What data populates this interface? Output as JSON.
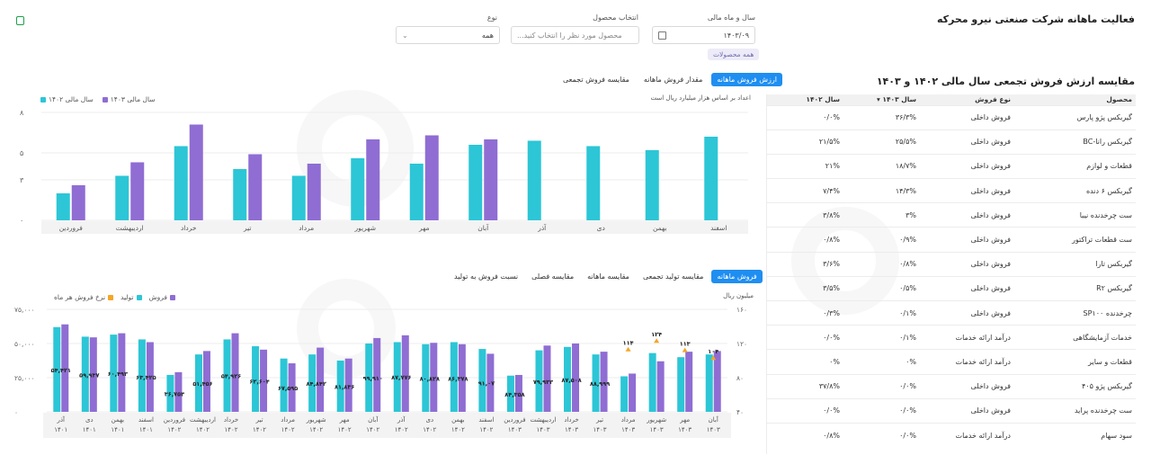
{
  "page": {
    "title": "فعالیت ماهانه شرکت صنعتی نیرو محرکه"
  },
  "filters": {
    "period_label": "سال و ماه مالی",
    "period_value": "۱۴۰۳/۰۹",
    "product_label": "انتخاب محصول",
    "product_placeholder": "محصول مورد نظر را انتخاب کنید...",
    "type_label": "نوع",
    "type_value": "همه",
    "chip": "همه محصولات"
  },
  "table_section": {
    "title": "مقایسه ارزش فروش تجمعی سال مالی ۱۴۰۲ و ۱۴۰۳",
    "headers": [
      "محصول",
      "نوع فروش",
      "سال ۱۴۰۳",
      "سال ۱۴۰۲"
    ],
    "rows": [
      {
        "product": "گیربکس پژو پارس",
        "type": "فروش داخلی",
        "y1403": "۳۶/۳%",
        "y1402": "۰/۰%"
      },
      {
        "product": "گیربکس رانا-BC",
        "type": "فروش داخلی",
        "y1403": "۲۵/۵%",
        "y1402": "۲۱/۵%"
      },
      {
        "product": "قطعات و لوازم",
        "type": "فروش داخلی",
        "y1403": "۱۸/۷%",
        "y1402": "۲۱%"
      },
      {
        "product": "گیربکس ۶ دنده",
        "type": "فروش داخلی",
        "y1403": "۱۴/۳%",
        "y1402": "۷/۴%"
      },
      {
        "product": "ست چرخدنده نیبا",
        "type": "فروش داخلی",
        "y1403": "۳%",
        "y1402": "۳/۸%"
      },
      {
        "product": "ست قطعات تراکتور",
        "type": "فروش داخلی",
        "y1403": "۰/۹%",
        "y1402": "۰/۸%"
      },
      {
        "product": "گیربکس تارا",
        "type": "فروش داخلی",
        "y1403": "۰/۸%",
        "y1402": "۳/۶%"
      },
      {
        "product": "گیربکس R۲",
        "type": "فروش داخلی",
        "y1403": "۰/۵%",
        "y1402": "۳/۵%"
      },
      {
        "product": "چرخدنده SP۱۰۰",
        "type": "فروش داخلی",
        "y1403": "۰/۱%",
        "y1402": "۰/۳%"
      },
      {
        "product": "خدمات آزمایشگاهی",
        "type": "درآمد ارائه خدمات",
        "y1403": "۰/۱%",
        "y1402": "۰/۰%"
      },
      {
        "product": "قطعات و سایر",
        "type": "درآمد ارائه خدمات",
        "y1403": "۰%",
        "y1402": "۰%"
      },
      {
        "product": "گیربکس پژو ۴۰۵",
        "type": "فروش داخلی",
        "y1403": "۰/۰%",
        "y1402": "۳۷/۸%"
      },
      {
        "product": "ست چرخدنده پراید",
        "type": "فروش داخلی",
        "y1403": "۰/۰%",
        "y1402": "۰/۰%"
      },
      {
        "product": "سود سهام",
        "type": "درآمد ارائه خدمات",
        "y1403": "۰/۰%",
        "y1402": "۰/۸%"
      }
    ]
  },
  "top_chart": {
    "tabs": [
      "ارزش فروش ماهانه",
      "مقدار فروش ماهانه",
      "مقایسه فروش تجمعی"
    ],
    "active_tab": 0,
    "note": "اعداد بر اساس هزار میلیارد ریال است",
    "legend": [
      "سال مالی ۱۴۰۳",
      "سال مالی ۱۴۰۲"
    ],
    "yticks": [
      "۸",
      "۵",
      "۳",
      "۰"
    ]
  },
  "bottom_chart": {
    "tabs": [
      "فروش ماهانه",
      "مقایسه تولید تجمعی",
      "مقایسه ماهانه",
      "مقایسه فصلی",
      "نسبت فروش به تولید"
    ],
    "active_tab": 0,
    "unit": "میلیون ریال",
    "legend": [
      "فروش",
      "تولید",
      "نرخ فروش هر ماه"
    ],
    "yticks_left": [
      "۷۵,۰۰۰",
      "۵۰,۰۰۰",
      "۲۵,۰۰۰",
      "۰"
    ],
    "yticks_right": [
      "۱۶۰",
      "۱۲۰",
      "۸۰",
      "۴۰"
    ]
  },
  "colors": {
    "cyan": "#2cc6d6",
    "purple": "#8f6dd3",
    "orange": "#f5a623",
    "accent": "#1f8ef1"
  },
  "chart_data": [
    {
      "type": "bar",
      "title": "",
      "categories": [
        "اسفند",
        "بهمن",
        "دی",
        "آذر",
        "آبان",
        "مهر",
        "شهریور",
        "مرداد",
        "تیر",
        "خرداد",
        "اردیبهشت",
        "فروردین"
      ],
      "ylim": [
        0,
        8
      ],
      "series": [
        {
          "name": "سال مالی ۱۴۰۲",
          "values": [
            6.2,
            5.2,
            5.5,
            5.9,
            5.6,
            4.2,
            4.6,
            3.3,
            3.8,
            5.5,
            3.3,
            2.0
          ]
        },
        {
          "name": "سال مالی ۱۴۰۳",
          "values": [
            null,
            null,
            null,
            null,
            6.0,
            6.3,
            6.0,
            4.2,
            4.9,
            7.1,
            4.3,
            2.6
          ]
        }
      ]
    },
    {
      "type": "bar",
      "title": "",
      "categories": [
        "آذر ۱۴۰۱",
        "دی ۱۴۰۱",
        "بهمن ۱۴۰۱",
        "اسفند ۱۴۰۱",
        "فروردین ۱۴۰۲",
        "اردیبهشت ۱۴۰۲",
        "خرداد ۱۴۰۲",
        "تیر ۱۴۰۲",
        "مرداد ۱۴۰۲",
        "شهریور ۱۴۰۲",
        "مهر ۱۴۰۲",
        "آبان ۱۴۰۲",
        "آذر ۱۴۰۲",
        "دی ۱۴۰۲",
        "بهمن ۱۴۰۲",
        "اسفند ۱۴۰۲",
        "فروردین ۱۴۰۳",
        "اردیبهشت ۱۴۰۳",
        "خرداد ۱۴۰۳",
        "تیر ۱۴۰۳",
        "مرداد ۱۴۰۳",
        "شهریور ۱۴۰۳",
        "مهر ۱۴۰۳",
        "آبان ۱۴۰۳"
      ],
      "ylim": [
        0,
        75000
      ],
      "y2lim": [
        40,
        160
      ],
      "bar_labels": [
        "۵۴,۴۲۱",
        "۵۹,۹۳۷",
        "۶۰,۴۹۳",
        "۶۳,۴۲۵",
        "۳۶,۷۵۳",
        "۵۱,۴۵۶",
        "۵۴,۹۲۶",
        "۶۲,۶۰۴",
        "۶۷,۵۹۵",
        "۸۴,۸۴۲",
        "۸۱,۸۳۶",
        "۹۹,۹۱۰",
        "۸۷,۷۷۶",
        "۸۰,۸۲۸",
        "۸۶,۳۷۸",
        "۹۱,۰۷",
        "۸۴,۳۵۸",
        "۷۹,۹۳۳",
        "۸۷,۵۰۸",
        "۸۸,۹۹۹",
        "",
        "",
        "",
        ""
      ],
      "rate_labels": [
        "",
        "",
        "",
        "",
        "",
        "",
        "",
        "",
        "",
        "",
        "",
        "",
        "",
        "",
        "",
        "",
        "",
        "",
        "",
        "",
        "۱۱۴",
        "۱۲۴",
        "۱۱۳",
        "۱۰۴"
      ],
      "series": [
        {
          "name": "فروش",
          "values": [
            62000,
            55000,
            56500,
            53000,
            27000,
            42000,
            53000,
            48000,
            39000,
            42000,
            37500,
            50000,
            51000,
            49500,
            51000,
            46000,
            26500,
            45000,
            47500,
            42000,
            26000,
            43000,
            40000,
            42000
          ]
        },
        {
          "name": "تولید",
          "values": [
            64000,
            54500,
            57500,
            51000,
            29000,
            44500,
            57500,
            45500,
            35500,
            47000,
            39000,
            54000,
            56000,
            50500,
            49500,
            42500,
            27000,
            48500,
            50000,
            44000,
            28000,
            37000,
            44000,
            44500
          ]
        },
        {
          "name": "نرخ فروش هر ماه",
          "values": [
            null,
            null,
            null,
            null,
            null,
            null,
            null,
            null,
            null,
            null,
            null,
            null,
            null,
            null,
            null,
            null,
            null,
            null,
            null,
            null,
            114,
            124,
            113,
            104
          ]
        }
      ]
    }
  ]
}
